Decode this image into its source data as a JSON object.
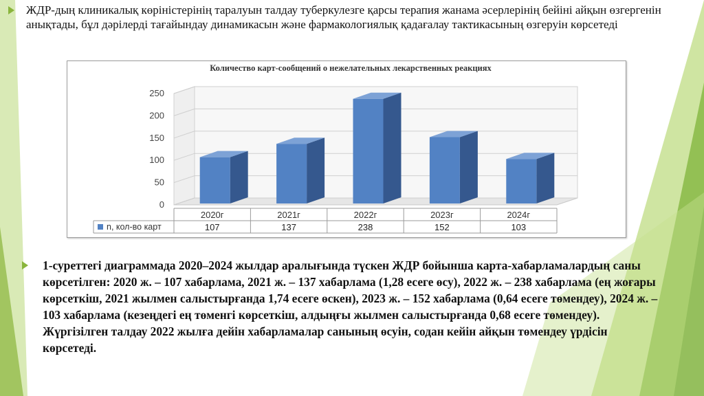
{
  "slide": {
    "paragraph_top": "ЖДР-дың клиникалық көріністерінің таралуын талдау туберкулезге қарсы терапия жанама әсерлерінің бейіні айқын өзгергенін анықтады, бұл дәрілерді тағайындау динамикасын және фармакологиялық қадағалау тактикасының өзгеруін көрсетеді",
    "paragraph_bottom": "1-суреттегі диаграммада 2020–2024 жылдар аралығында түскен ЖДР бойынша карта-хабарламалардың саны көрсетілген: 2020 ж. – 107 хабарлама, 2021 ж. – 137 хабарлама (1,28 есеге өсу), 2022 ж. – 238 хабарлама (ең жоғары көрсеткіш, 2021 жылмен салыстырғанда 1,74 есеге өскен), 2023 ж. – 152 хабарлама (0,64 есеге төмендеу), 2024 ж. – 103 хабарлама (кезеңдегі ең төменгі көрсеткіш, алдыңғы жылмен салыстырғанда 0,68 есеге төмендеу). Жүргізілген талдау 2022 жылға дейін хабарламалар санының өсуін, содан кейін айқын төмендеу үрдісін көрсетеді.",
    "colors": {
      "accent_green": "#8ab53c",
      "bar_front": "#5282c4",
      "bar_side": "#35588e",
      "bar_top": "#7da2d6"
    }
  },
  "chart_data": {
    "type": "bar",
    "title": "Количество карт-сообщений о нежелательных лекарственных реакциях",
    "categories": [
      "2020г",
      "2021г",
      "2022г",
      "2023г",
      "2024г"
    ],
    "series": [
      {
        "name": "n, кол-во карт",
        "values": [
          107,
          137,
          238,
          152,
          103
        ]
      }
    ],
    "y_ticks": [
      "0",
      "50",
      "100",
      "150",
      "200",
      "250"
    ],
    "ylim": [
      0,
      250
    ],
    "grid": true,
    "legend": "data-table",
    "style": "3d-column"
  }
}
